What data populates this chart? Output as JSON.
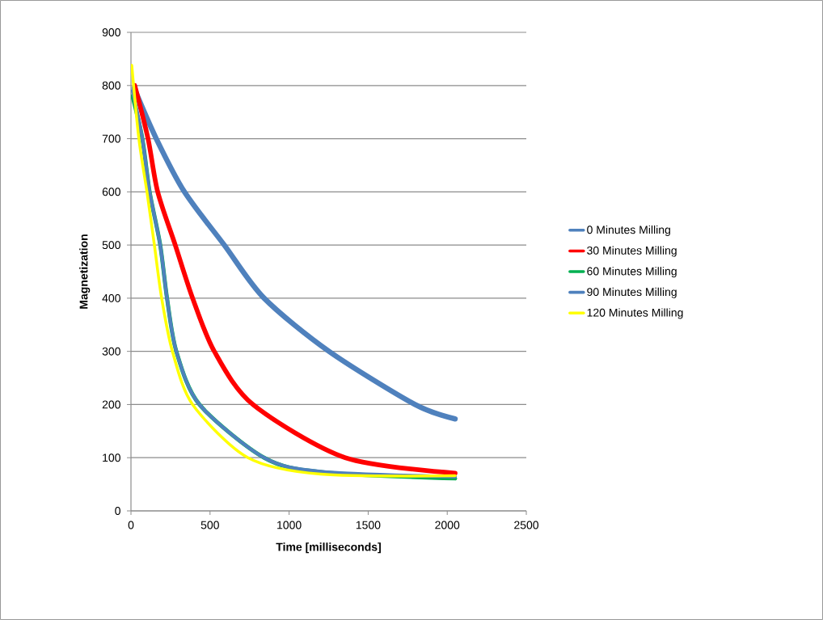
{
  "chart_data": {
    "type": "line",
    "xlabel": "Time [milliseconds]",
    "ylabel": "Magnetization",
    "xlim": [
      0,
      2500
    ],
    "xticks": [
      0,
      500,
      1000,
      1500,
      2000,
      2500
    ],
    "ylim": [
      0,
      900
    ],
    "yticks": [
      0,
      100,
      200,
      300,
      400,
      500,
      600,
      700,
      800,
      900
    ],
    "grid": "y",
    "legend": "right",
    "marker": "none",
    "line_style": "solid",
    "series": [
      {
        "name": "0 Minutes Milling",
        "color": "#4f81bd",
        "x": [
          20,
          160,
          338,
          590,
          842,
          1252,
          1796,
          2050
        ],
        "values": [
          795,
          700,
          600,
          500,
          400,
          300,
          200,
          173
        ]
      },
      {
        "name": "30 Minutes Milling",
        "color": "#ff0000",
        "x": [
          24,
          108,
          169,
          280,
          390,
          527,
          772,
          1355,
          2050
        ],
        "values": [
          800,
          700,
          600,
          500,
          400,
          300,
          200,
          100,
          71
        ]
      },
      {
        "name": "60 Minutes Milling",
        "color": "#00b050",
        "x": [
          10,
          72,
          118,
          185,
          228,
          287,
          433,
          842,
          1200,
          2050
        ],
        "values": [
          780,
          700,
          600,
          500,
          400,
          300,
          200,
          100,
          73,
          61
        ]
      },
      {
        "name": "90 Minutes Milling",
        "color": "#4f81bd",
        "x": [
          10,
          72,
          118,
          185,
          228,
          287,
          433,
          842,
          1200,
          2050
        ],
        "values": [
          790,
          700,
          600,
          500,
          400,
          300,
          200,
          100,
          74,
          64
        ]
      },
      {
        "name": "120 Minutes Milling",
        "color": "#ffff00",
        "x": [
          5,
          50,
          101,
          148,
          194,
          262,
          390,
          740,
          1200,
          2050
        ],
        "values": [
          838,
          700,
          600,
          500,
          400,
          300,
          200,
          100,
          69,
          66
        ]
      }
    ]
  }
}
